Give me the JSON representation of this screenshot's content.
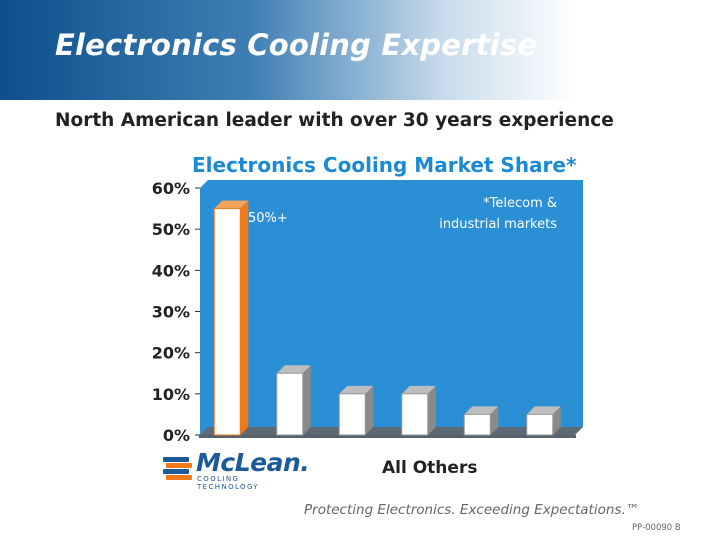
{
  "slide": {
    "title": "Electronics Cooling Expertise",
    "subtitle": "North American leader with over 30 years experience",
    "logo_text": "McLean.",
    "logo_tagline": "COOLING TECHNOLOGY",
    "tagline": "Protecting Electronics. Exceeding Expectations.™",
    "code": "PP-00090 B"
  },
  "colors": {
    "plot_bg": "#2b8fd6",
    "bar": "#ffffff",
    "highlight_edge": "#f07a1a",
    "brand_blue": "#1c5a9a"
  },
  "chart_data": {
    "type": "bar",
    "title": "Electronics Cooling Market Share*",
    "categories": [
      "McLean",
      "",
      "",
      "",
      "",
      ""
    ],
    "values": [
      55,
      15,
      10,
      10,
      5,
      5
    ],
    "ylim": [
      0,
      60
    ],
    "yticks": [
      "0%",
      "10%",
      "20%",
      "30%",
      "40%",
      "50%",
      "60%"
    ],
    "xlabel": "All Others",
    "annotations": [
      "50%+",
      "*Telecom &",
      "industrial markets"
    ],
    "grid": false,
    "legend": "none"
  }
}
